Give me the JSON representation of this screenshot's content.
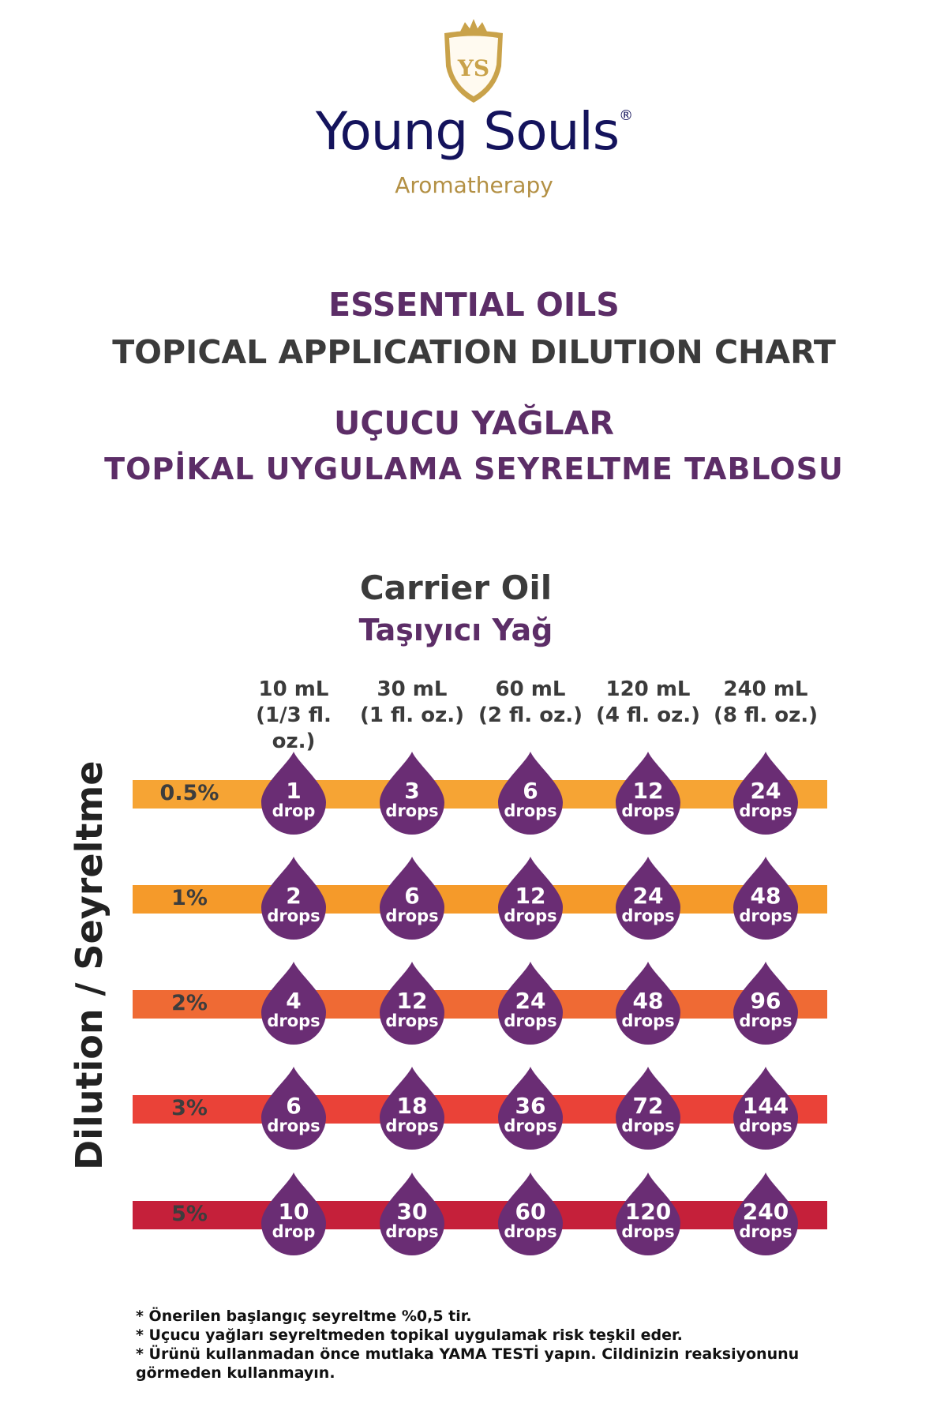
{
  "brand": {
    "logo_monogram": "YS",
    "name": "Young Souls",
    "registered_mark": "®",
    "tagline": "Aromatherapy",
    "colors": {
      "navy": "#14135c",
      "gold": "#b39044"
    }
  },
  "titles": {
    "en_line1": "ESSENTIAL OILS",
    "en_line2": "TOPICAL APPLICATION DILUTION CHART",
    "tr_line1": "UÇUCU YAĞLAR",
    "tr_line2": "TOPİKAL UYGULAMA SEYRELTME TABLOSU"
  },
  "chart_data": {
    "type": "table",
    "column_title": "Carrier Oil",
    "column_title_tr": "Taşıyıcı Yağ",
    "columns": [
      {
        "volume": "10 mL",
        "fl_oz": "(1/3 fl. oz.)"
      },
      {
        "volume": "30 mL",
        "fl_oz": "(1 fl. oz.)"
      },
      {
        "volume": "60 mL",
        "fl_oz": "(2 fl. oz.)"
      },
      {
        "volume": "120 mL",
        "fl_oz": "(4 fl. oz.)"
      },
      {
        "volume": "240 mL",
        "fl_oz": "(8 fl. oz.)"
      }
    ],
    "row_axis_title": "Dilution  / Seyreltme",
    "rows": [
      {
        "label": "0.5%",
        "color": "#f6a434",
        "cells": [
          {
            "value": "1",
            "unit": "drop"
          },
          {
            "value": "3",
            "unit": "drops"
          },
          {
            "value": "6",
            "unit": "drops"
          },
          {
            "value": "12",
            "unit": "drops"
          },
          {
            "value": "24",
            "unit": "drops"
          }
        ]
      },
      {
        "label": "1%",
        "color": "#f59a2a",
        "cells": [
          {
            "value": "2",
            "unit": "drops"
          },
          {
            "value": "6",
            "unit": "drops"
          },
          {
            "value": "12",
            "unit": "drops"
          },
          {
            "value": "24",
            "unit": "drops"
          },
          {
            "value": "48",
            "unit": "drops"
          }
        ]
      },
      {
        "label": "2%",
        "color": "#ef6a34",
        "cells": [
          {
            "value": "4",
            "unit": "drops"
          },
          {
            "value": "12",
            "unit": "drops"
          },
          {
            "value": "24",
            "unit": "drops"
          },
          {
            "value": "48",
            "unit": "drops"
          },
          {
            "value": "96",
            "unit": "drops"
          }
        ]
      },
      {
        "label": "3%",
        "color": "#ea4238",
        "cells": [
          {
            "value": "6",
            "unit": "drops"
          },
          {
            "value": "18",
            "unit": "drops"
          },
          {
            "value": "36",
            "unit": "drops"
          },
          {
            "value": "72",
            "unit": "drops"
          },
          {
            "value": "144",
            "unit": "drops"
          }
        ]
      },
      {
        "label": "5%",
        "color": "#c5203a",
        "cells": [
          {
            "value": "10",
            "unit": "drop"
          },
          {
            "value": "30",
            "unit": "drops"
          },
          {
            "value": "60",
            "unit": "drops"
          },
          {
            "value": "120",
            "unit": "drops"
          },
          {
            "value": "240",
            "unit": "drops"
          }
        ]
      }
    ],
    "drop_color": "#6a2d74"
  },
  "notes": [
    "* Önerilen başlangıç seyreltme %0,5 tir.",
    "* Uçucu yağları seyreltmeden topikal uygulamak risk teşkil eder.",
    "* Ürünü kullanmadan önce mutlaka YAMA TESTİ yapın. Cildinizin reaksiyonunu görmeden kullanmayın."
  ]
}
